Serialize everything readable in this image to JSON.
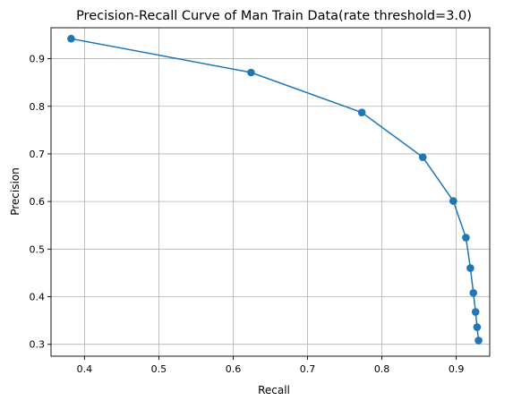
{
  "chart_data": {
    "type": "line",
    "title": "Precision-Recall Curve of Man Train Data(rate threshold=3.0)",
    "xlabel": "Recall",
    "ylabel": "Precision",
    "xlim": [
      0.355,
      0.945
    ],
    "ylim": [
      0.275,
      0.965
    ],
    "xticks": [
      0.4,
      0.5,
      0.6,
      0.7,
      0.8,
      0.9
    ],
    "xtick_labels": [
      "0.4",
      "0.5",
      "0.6",
      "0.7",
      "0.8",
      "0.9"
    ],
    "yticks": [
      0.3,
      0.4,
      0.5,
      0.6,
      0.7,
      0.8,
      0.9
    ],
    "ytick_labels": [
      "0.3",
      "0.4",
      "0.5",
      "0.6",
      "0.7",
      "0.8",
      "0.9"
    ],
    "grid": true,
    "marker": "circle",
    "colors": {
      "series": "#1f77b4",
      "grid": "#b0b0b0",
      "axes": "#000000"
    },
    "series": [
      {
        "x": [
          0.382,
          0.624,
          0.773,
          0.855,
          0.896,
          0.913,
          0.919,
          0.923,
          0.926,
          0.928,
          0.93
        ],
        "y": [
          0.942,
          0.871,
          0.787,
          0.693,
          0.601,
          0.524,
          0.46,
          0.408,
          0.368,
          0.336,
          0.308
        ]
      }
    ]
  }
}
